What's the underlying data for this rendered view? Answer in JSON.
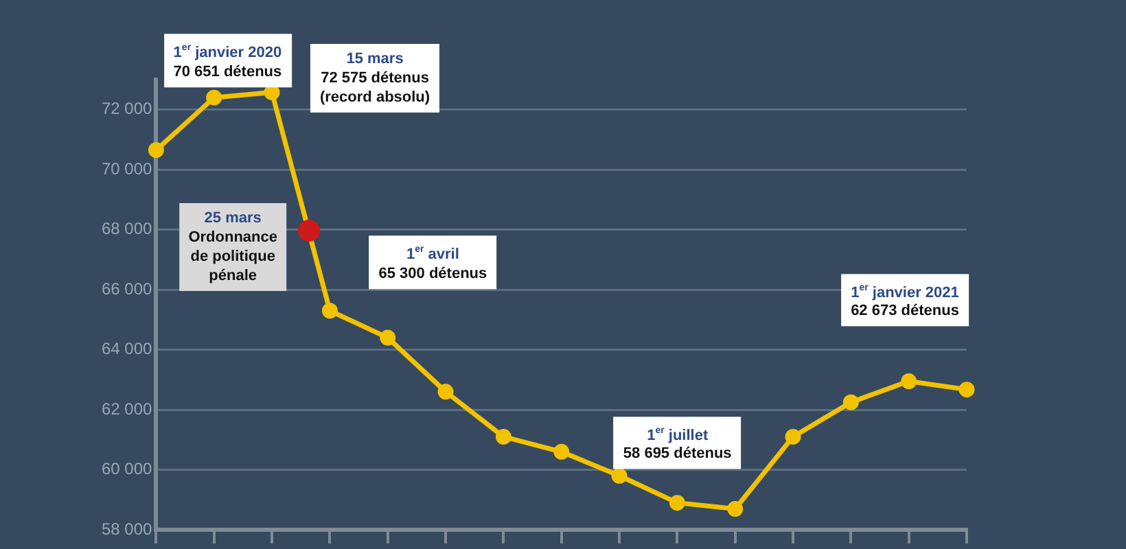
{
  "chart_data": {
    "type": "line",
    "categories": [
      null,
      null,
      null,
      null,
      null,
      null,
      null,
      null,
      null,
      null,
      null,
      null,
      null,
      null,
      null
    ],
    "series": [
      {
        "color": "#f2c200",
        "values": [
          70651,
          72400,
          72575,
          65300,
          64400,
          62600,
          61100,
          60600,
          59800,
          58900,
          58695,
          61100,
          62250,
          62950,
          62673
        ]
      }
    ],
    "ylim": [
      58000,
      73000
    ],
    "yticks": [
      {
        "value": 58000,
        "label": "58 000"
      },
      {
        "value": 60000,
        "label": "60 000"
      },
      {
        "value": 62000,
        "label": "62 000"
      },
      {
        "value": 64000,
        "label": "64 000"
      },
      {
        "value": 66000,
        "label": "66 000"
      },
      {
        "value": 68000,
        "label": "68 000"
      },
      {
        "value": 70000,
        "label": "70 000"
      },
      {
        "value": 72000,
        "label": "72 000"
      }
    ],
    "annotations": [
      "1$^{er}$ janvier 2020\n70 651 détenus",
      "15 mars\n72 575 détenus\n(record absolu)",
      "25 mars\nOrdonnance\nde politique\npénale",
      "1$^{er}$ avril\n65 300 détenus",
      "1$^{er}$ juillet\n58 695 détenus",
      "1$^{er}$ janvier 2021\n62 673 détenus"
    ],
    "grid": "y",
    "legend": false,
    "marker": "circle",
    "line_style": "solid",
    "tick_labels": "y"
  }
}
